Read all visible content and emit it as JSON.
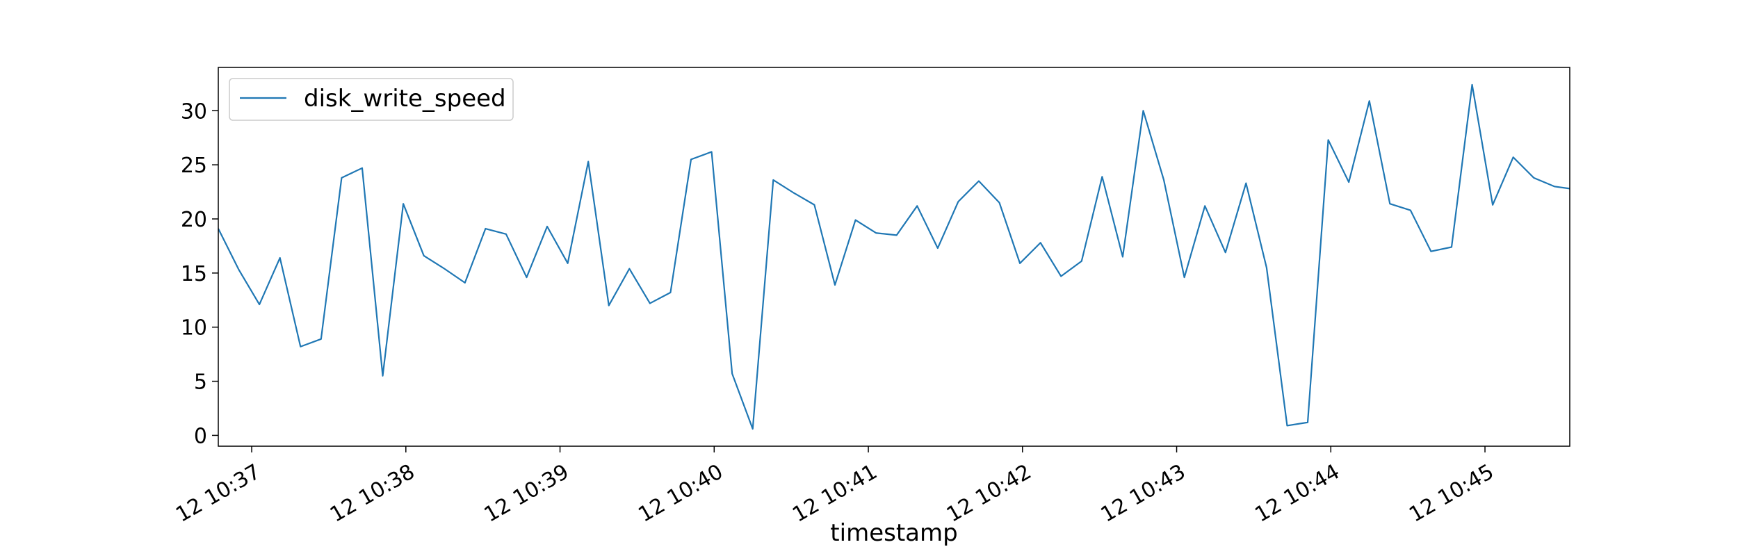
{
  "chart_data": {
    "type": "line",
    "title": "",
    "xlabel": "timestamp",
    "ylabel": "",
    "legend_position": "upper-left",
    "grid": false,
    "colors": {
      "series": "#1f77b4",
      "axes": "#000000",
      "background": "#ffffff"
    },
    "yticks": [
      0,
      5,
      10,
      15,
      20,
      25,
      30
    ],
    "ylim": [
      -1,
      34
    ],
    "xlim": [
      "12 10:36:47",
      "12 10:45:33"
    ],
    "xticks": [
      {
        "time": "12 10:37:00",
        "label": "12 10:37"
      },
      {
        "time": "12 10:38:00",
        "label": "12 10:38"
      },
      {
        "time": "12 10:39:00",
        "label": "12 10:39"
      },
      {
        "time": "12 10:40:00",
        "label": "12 10:40"
      },
      {
        "time": "12 10:41:00",
        "label": "12 10:41"
      },
      {
        "time": "12 10:42:00",
        "label": "12 10:42"
      },
      {
        "time": "12 10:43:00",
        "label": "12 10:43"
      },
      {
        "time": "12 10:44:00",
        "label": "12 10:44"
      },
      {
        "time": "12 10:45:00",
        "label": "12 10:45"
      }
    ],
    "series": [
      {
        "name": "disk_write_speed",
        "x": [
          "12 10:36:47",
          "12 10:36:55",
          "12 10:37:03",
          "12 10:37:11",
          "12 10:37:19",
          "12 10:37:27",
          "12 10:37:35",
          "12 10:37:43",
          "12 10:37:51",
          "12 10:37:59",
          "12 10:38:07",
          "12 10:38:15",
          "12 10:38:23",
          "12 10:38:31",
          "12 10:38:39",
          "12 10:38:47",
          "12 10:38:55",
          "12 10:39:03",
          "12 10:39:11",
          "12 10:39:19",
          "12 10:39:27",
          "12 10:39:35",
          "12 10:39:43",
          "12 10:39:51",
          "12 10:39:59",
          "12 10:40:07",
          "12 10:40:15",
          "12 10:40:23",
          "12 10:40:31",
          "12 10:40:39",
          "12 10:40:47",
          "12 10:40:55",
          "12 10:41:03",
          "12 10:41:11",
          "12 10:41:19",
          "12 10:41:27",
          "12 10:41:35",
          "12 10:41:43",
          "12 10:41:51",
          "12 10:41:59",
          "12 10:42:07",
          "12 10:42:15",
          "12 10:42:23",
          "12 10:42:31",
          "12 10:42:39",
          "12 10:42:47",
          "12 10:42:55",
          "12 10:43:03",
          "12 10:43:11",
          "12 10:43:19",
          "12 10:43:27",
          "12 10:43:35",
          "12 10:43:43",
          "12 10:43:51",
          "12 10:43:59",
          "12 10:44:07",
          "12 10:44:15",
          "12 10:44:23",
          "12 10:44:31",
          "12 10:44:39",
          "12 10:44:47",
          "12 10:44:55",
          "12 10:45:03",
          "12 10:45:11",
          "12 10:45:19",
          "12 10:45:27",
          "12 10:45:33"
        ],
        "y": [
          19.1,
          15.3,
          12.1,
          16.4,
          8.2,
          8.9,
          23.8,
          24.7,
          5.5,
          21.4,
          16.6,
          15.4,
          14.1,
          19.1,
          18.6,
          14.6,
          19.3,
          15.9,
          25.3,
          12.0,
          15.4,
          12.2,
          13.2,
          25.5,
          26.2,
          5.7,
          0.6,
          23.6,
          22.4,
          21.3,
          13.9,
          19.9,
          18.7,
          18.5,
          21.2,
          17.3,
          21.6,
          23.5,
          21.5,
          15.9,
          17.8,
          14.7,
          16.1,
          23.9,
          16.5,
          30.0,
          23.6,
          14.6,
          21.2,
          16.9,
          23.3,
          15.5,
          0.9,
          1.2,
          27.3,
          23.4,
          30.9,
          21.4,
          20.8,
          17.0,
          17.4,
          32.4,
          21.3,
          25.7,
          23.8,
          23.0,
          22.8
        ]
      }
    ]
  }
}
